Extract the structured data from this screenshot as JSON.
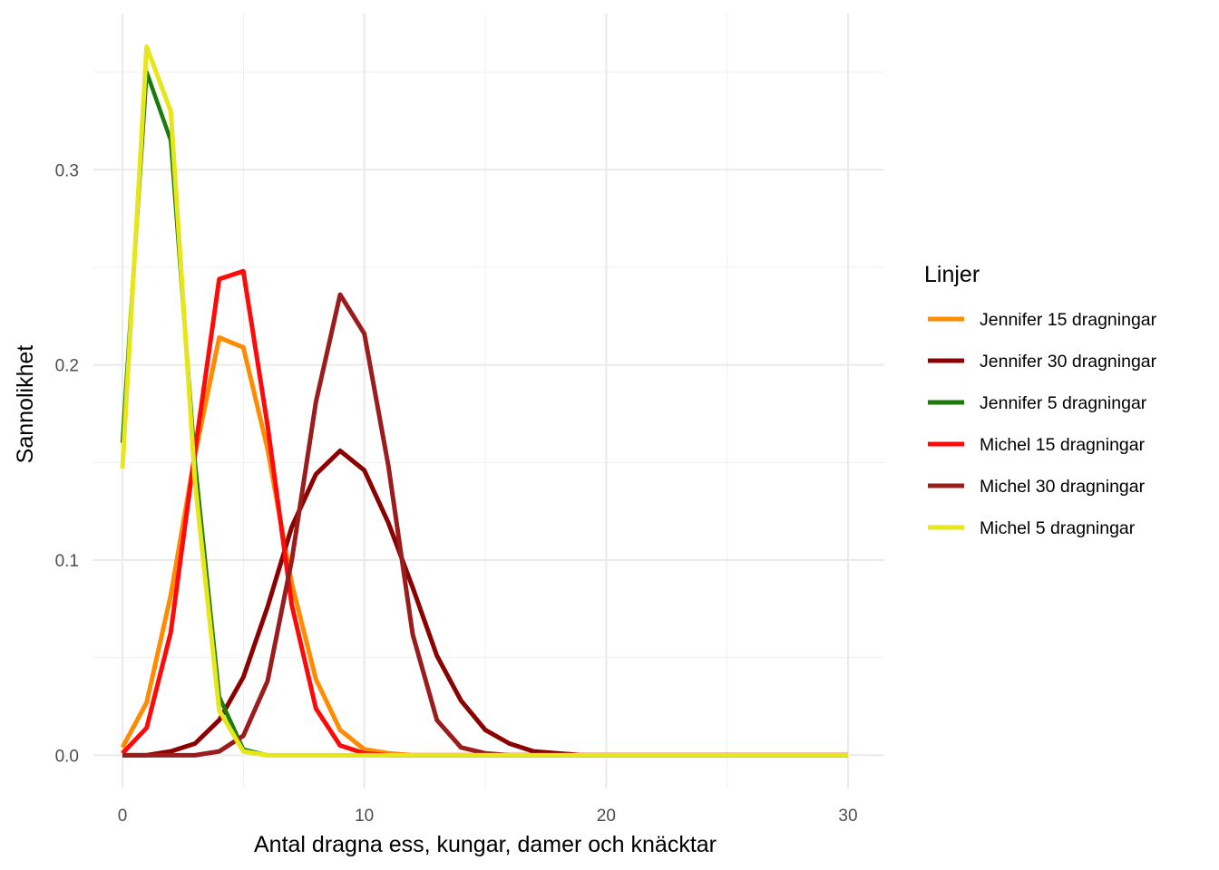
{
  "chart_data": {
    "type": "line",
    "title": "",
    "xlabel": "Antal dragna ess, kungar, damer och knäcktar",
    "ylabel": "Sannolikhet",
    "xlim": [
      -1.2,
      31.5
    ],
    "ylim": [
      -0.017,
      0.38
    ],
    "x_ticks": [
      0,
      10,
      20,
      30
    ],
    "x_tick_labels": [
      "0",
      "10",
      "20",
      "30"
    ],
    "y_ticks": [
      0.0,
      0.1,
      0.2,
      0.3
    ],
    "y_tick_labels": [
      "0.0",
      "0.1",
      "0.2",
      "0.3"
    ],
    "grid": true,
    "legend": {
      "title": "Linjer",
      "position": "right"
    },
    "series": [
      {
        "name": "Jennifer 15 dragningar",
        "color": "#FF8C00",
        "x": [
          0,
          1,
          2,
          3,
          4,
          5,
          6,
          7,
          8,
          9,
          10,
          11,
          12,
          13,
          14,
          15,
          16,
          17,
          18,
          19,
          20,
          21,
          22,
          23,
          24,
          25,
          26,
          27,
          28,
          29,
          30
        ],
        "values": [
          0.004,
          0.027,
          0.082,
          0.154,
          0.214,
          0.209,
          0.157,
          0.088,
          0.039,
          0.013,
          0.003,
          0.001,
          0,
          0,
          0,
          0,
          0,
          0,
          0,
          0,
          0,
          0,
          0,
          0,
          0,
          0,
          0,
          0,
          0,
          0,
          0
        ]
      },
      {
        "name": "Jennifer 30 dragningar",
        "color": "#8B0000",
        "x": [
          0,
          1,
          2,
          3,
          4,
          5,
          6,
          7,
          8,
          9,
          10,
          11,
          12,
          13,
          14,
          15,
          16,
          17,
          18,
          19,
          20,
          21,
          22,
          23,
          24,
          25,
          26,
          27,
          28,
          29,
          30
        ],
        "values": [
          0,
          0,
          0.002,
          0.006,
          0.018,
          0.04,
          0.076,
          0.117,
          0.144,
          0.156,
          0.146,
          0.119,
          0.086,
          0.051,
          0.028,
          0.013,
          0.006,
          0.002,
          0.001,
          0,
          0,
          0,
          0,
          0,
          0,
          0,
          0,
          0,
          0,
          0,
          0
        ]
      },
      {
        "name": "Jennifer 5 dragningar",
        "color": "#1A7A0A",
        "x": [
          0,
          1,
          2,
          3,
          4,
          5,
          6,
          7,
          8,
          9,
          10,
          11,
          12,
          13,
          14,
          15,
          16,
          17,
          18,
          19,
          20,
          21,
          22,
          23,
          24,
          25,
          26,
          27,
          28,
          29,
          30
        ],
        "values": [
          0.16,
          0.35,
          0.315,
          0.15,
          0.03,
          0.003,
          0,
          0,
          0,
          0,
          0,
          0,
          0,
          0,
          0,
          0,
          0,
          0,
          0,
          0,
          0,
          0,
          0,
          0,
          0,
          0,
          0,
          0,
          0,
          0,
          0
        ]
      },
      {
        "name": "Michel 15 dragningar",
        "color": "#FF0A0A",
        "x": [
          0,
          1,
          2,
          3,
          4,
          5,
          6,
          7,
          8,
          9,
          10,
          11,
          12,
          13,
          14,
          15,
          16,
          17,
          18,
          19,
          20,
          21,
          22,
          23,
          24,
          25,
          26,
          27,
          28,
          29,
          30
        ],
        "values": [
          0.001,
          0.014,
          0.063,
          0.156,
          0.244,
          0.248,
          0.169,
          0.077,
          0.024,
          0.005,
          0.001,
          0,
          0,
          0,
          0,
          0,
          0,
          0,
          0,
          0,
          0,
          0,
          0,
          0,
          0,
          0,
          0,
          0,
          0,
          0,
          0
        ]
      },
      {
        "name": "Michel 30 dragningar",
        "color": "#9B1C1C",
        "x": [
          0,
          1,
          2,
          3,
          4,
          5,
          6,
          7,
          8,
          9,
          10,
          11,
          12,
          13,
          14,
          15,
          16,
          17,
          18,
          19,
          20,
          21,
          22,
          23,
          24,
          25,
          26,
          27,
          28,
          29,
          30
        ],
        "values": [
          0,
          0,
          0,
          0,
          0.002,
          0.01,
          0.038,
          0.1,
          0.181,
          0.236,
          0.216,
          0.148,
          0.062,
          0.018,
          0.004,
          0.001,
          0,
          0,
          0,
          0,
          0,
          0,
          0,
          0,
          0,
          0,
          0,
          0,
          0,
          0,
          0
        ]
      },
      {
        "name": "Michel 5 dragningar",
        "color": "#E6E61A",
        "x": [
          0,
          1,
          2,
          3,
          4,
          5,
          6,
          7,
          8,
          9,
          10,
          11,
          12,
          13,
          14,
          15,
          16,
          17,
          18,
          19,
          20,
          21,
          22,
          23,
          24,
          25,
          26,
          27,
          28,
          29,
          30
        ],
        "values": [
          0.147,
          0.363,
          0.33,
          0.14,
          0.023,
          0.002,
          0,
          0,
          0,
          0,
          0,
          0,
          0,
          0,
          0,
          0,
          0,
          0,
          0,
          0,
          0,
          0,
          0,
          0,
          0,
          0,
          0,
          0,
          0,
          0,
          0
        ]
      }
    ]
  }
}
